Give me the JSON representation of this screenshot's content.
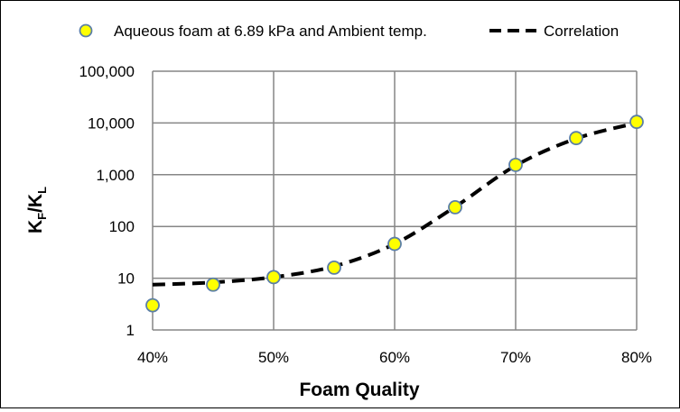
{
  "chart_data": {
    "type": "scatter",
    "xlabel": "Foam Quality",
    "ylabel_main": "K",
    "ylabel_sub_f": "F",
    "ylabel_slash": "/",
    "ylabel_main2": "K",
    "ylabel_sub_l": "L",
    "x_scale": "linear",
    "y_scale": "log",
    "xlim": [
      0.4,
      0.8
    ],
    "ylim": [
      1,
      100000
    ],
    "x_ticks": [
      {
        "value": 0.4,
        "label": "40%"
      },
      {
        "value": 0.5,
        "label": "50%"
      },
      {
        "value": 0.6,
        "label": "60%"
      },
      {
        "value": 0.7,
        "label": "70%"
      },
      {
        "value": 0.8,
        "label": "80%"
      }
    ],
    "y_ticks": [
      {
        "value": 1,
        "label": "1"
      },
      {
        "value": 10,
        "label": "10"
      },
      {
        "value": 100,
        "label": "100"
      },
      {
        "value": 1000,
        "label": "1,000"
      },
      {
        "value": 10000,
        "label": "10,000"
      },
      {
        "value": 100000,
        "label": "100,000"
      }
    ],
    "grid": true,
    "legend_position": "top",
    "series": [
      {
        "name": "Aqueous foam at 6.89 kPa and Ambient temp.",
        "kind": "markers",
        "color": "#ffff00",
        "edge_color": "#5b7fa6",
        "x": [
          0.4,
          0.45,
          0.5,
          0.55,
          0.6,
          0.65,
          0.7,
          0.75,
          0.8
        ],
        "y": [
          3,
          7.5,
          10.5,
          16,
          46,
          235,
          1550,
          5100,
          10500
        ]
      },
      {
        "name": "Correlation",
        "kind": "dashed-line",
        "color": "#000000",
        "x": [
          0.4,
          0.45,
          0.5,
          0.55,
          0.6,
          0.65,
          0.7,
          0.75,
          0.8
        ],
        "y": [
          7.5,
          8.3,
          10.5,
          17,
          46,
          240,
          1500,
          5000,
          10000
        ]
      }
    ]
  }
}
